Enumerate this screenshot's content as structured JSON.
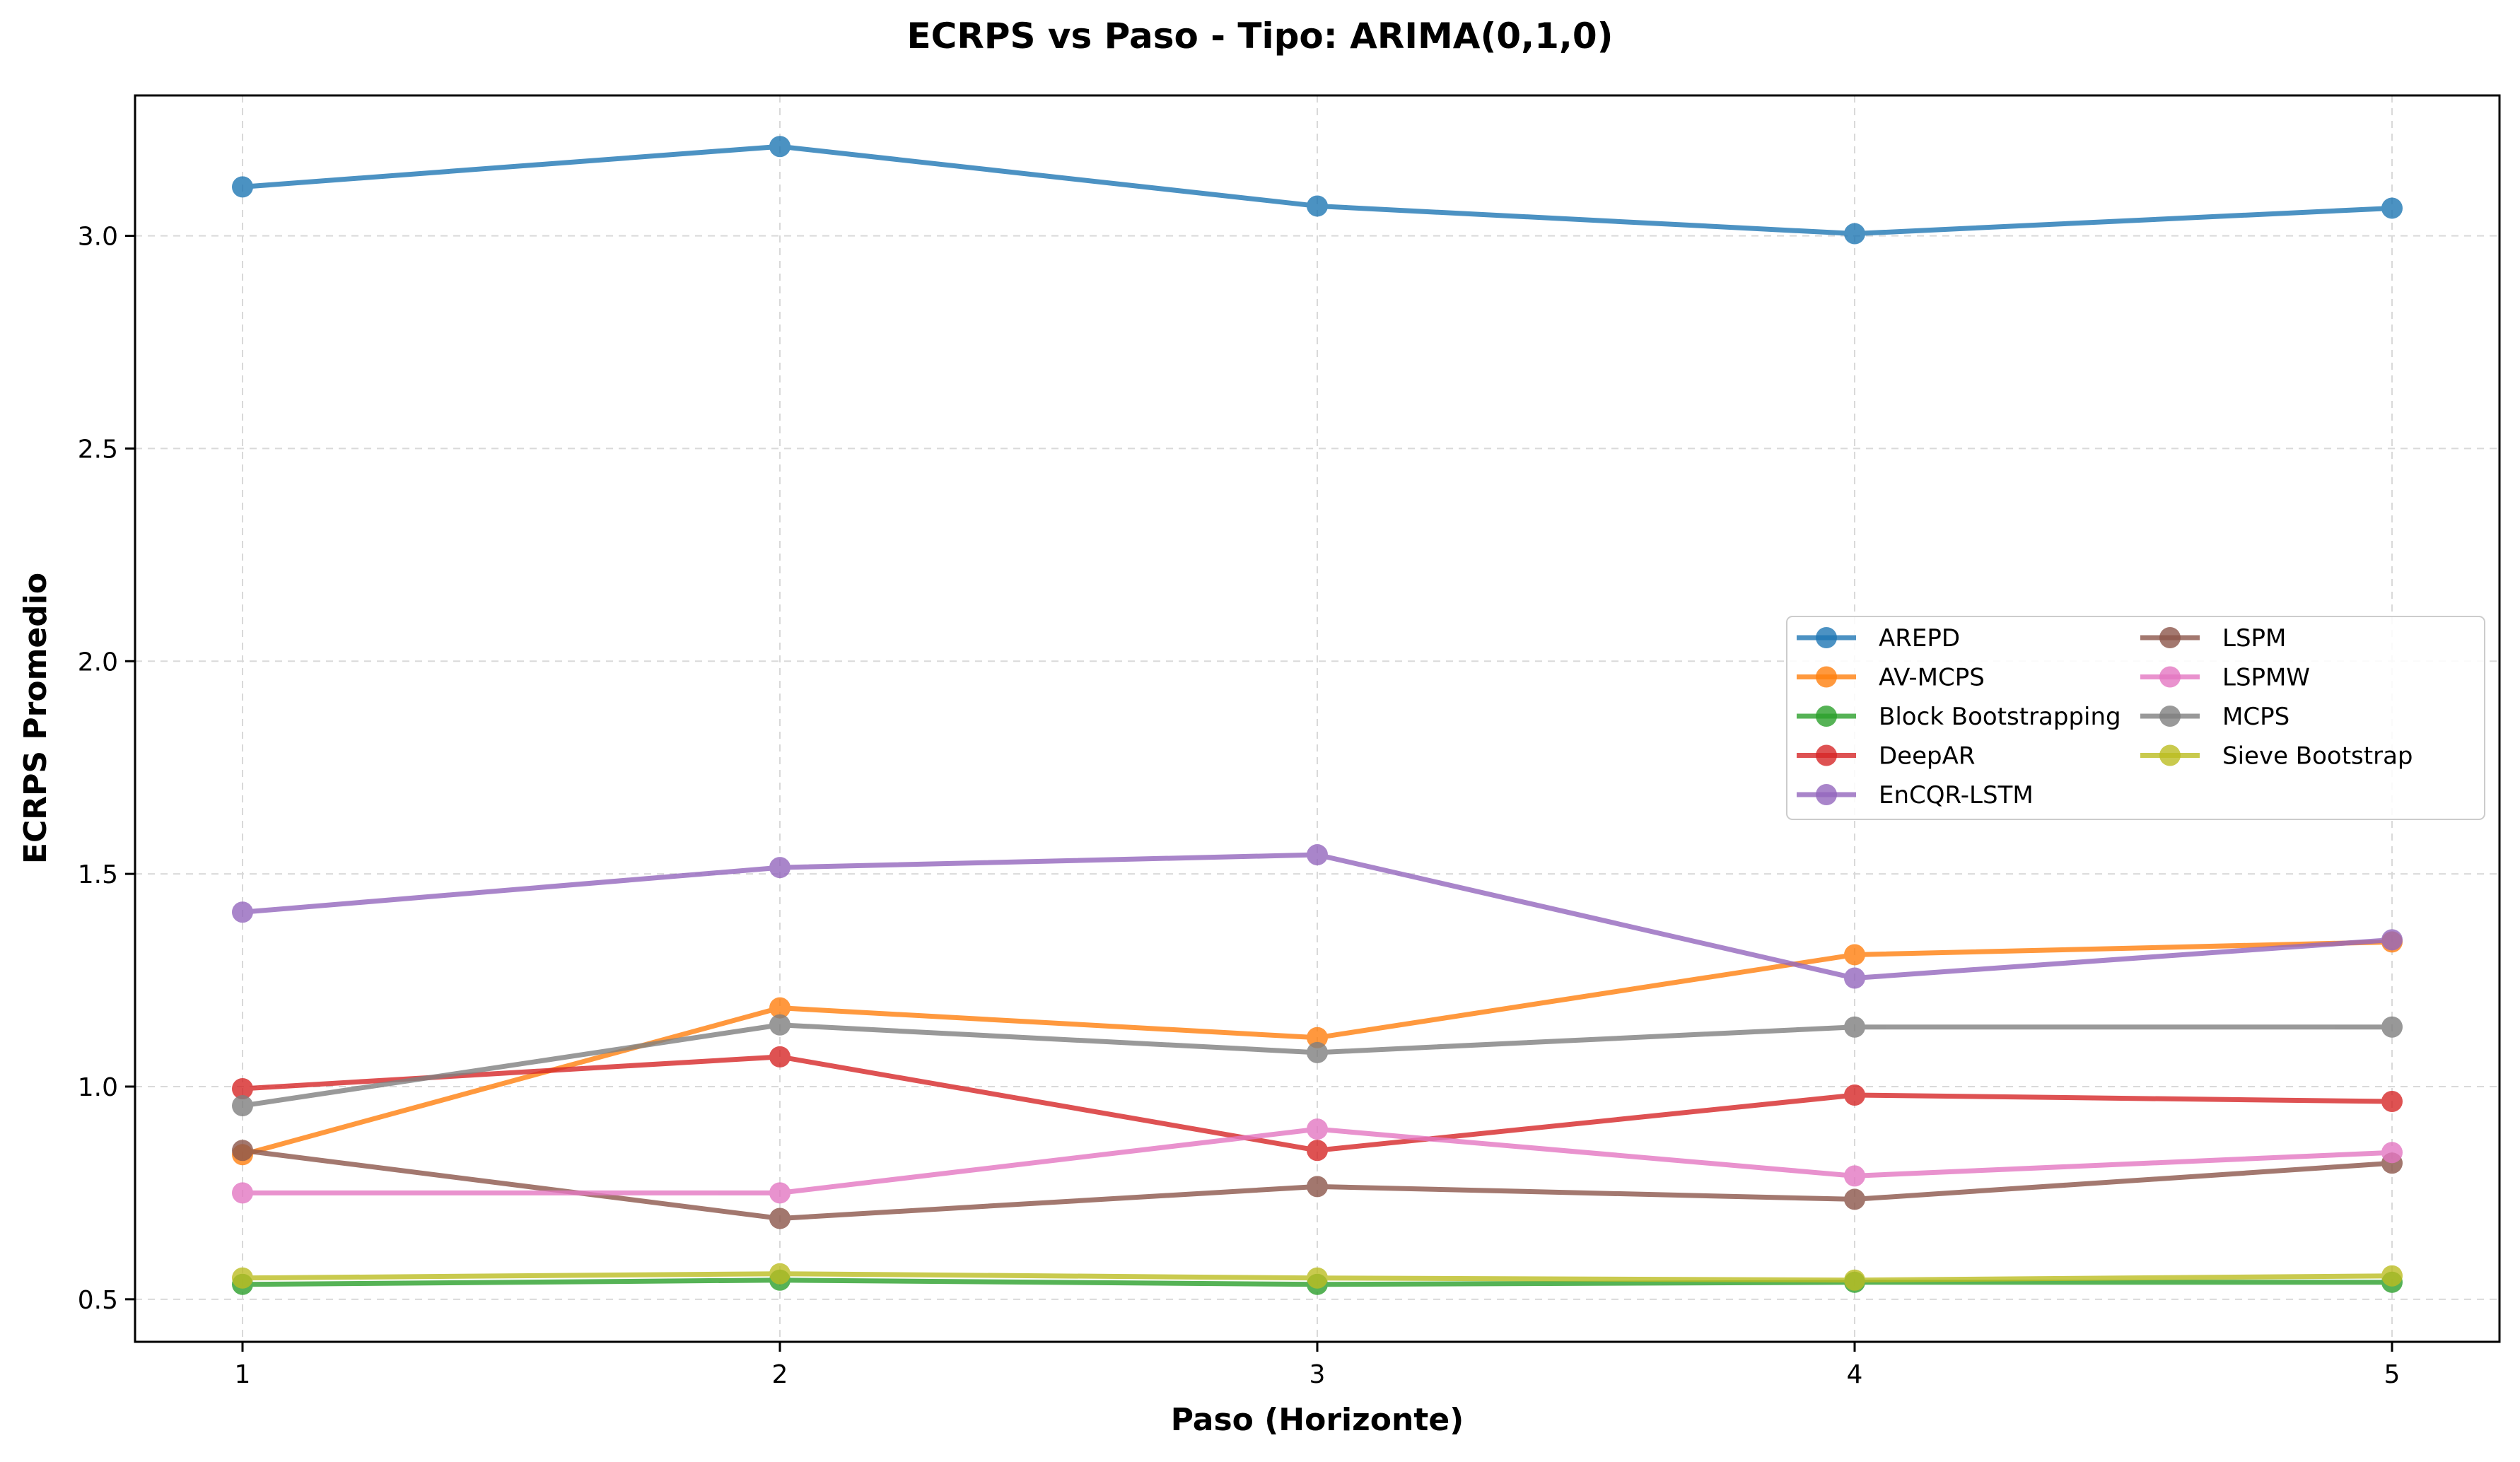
{
  "chart_data": {
    "type": "line",
    "title": "ECRPS vs Paso - Tipo: ARIMA(0,1,0)",
    "xlabel": "Paso (Horizonte)",
    "ylabel": "ECRPS Promedio",
    "x": [
      1,
      2,
      3,
      4,
      5
    ],
    "x_ticks": [
      "1",
      "2",
      "3",
      "4",
      "5"
    ],
    "xlim": [
      0.8,
      5.2
    ],
    "ylim": [
      0.4,
      3.33
    ],
    "y_ticks": [
      "0.5",
      "1.0",
      "1.5",
      "2.0",
      "2.5",
      "3.0"
    ],
    "grid": true,
    "legend_position": "center-right",
    "legend_columns": 2,
    "series": [
      {
        "name": "AREPD",
        "color": "#1f77b4",
        "values": [
          3.115,
          3.21,
          3.07,
          3.005,
          3.065
        ]
      },
      {
        "name": "AV-MCPS",
        "color": "#ff7f0e",
        "values": [
          0.84,
          1.185,
          1.115,
          1.31,
          1.34
        ]
      },
      {
        "name": "Block Bootstrapping",
        "color": "#2ca02c",
        "values": [
          0.535,
          0.545,
          0.535,
          0.54,
          0.54
        ]
      },
      {
        "name": "DeepAR",
        "color": "#d62728",
        "values": [
          0.995,
          1.07,
          0.85,
          0.98,
          0.965
        ]
      },
      {
        "name": "EnCQR-LSTM",
        "color": "#9467bd",
        "values": [
          1.41,
          1.515,
          1.545,
          1.255,
          1.345
        ]
      },
      {
        "name": "LSPM",
        "color": "#8c564b",
        "values": [
          0.85,
          0.69,
          0.765,
          0.735,
          0.82
        ]
      },
      {
        "name": "LSPMW",
        "color": "#e377c2",
        "values": [
          0.75,
          0.75,
          0.9,
          0.79,
          0.845
        ]
      },
      {
        "name": "MCPS",
        "color": "#7f7f7f",
        "values": [
          0.955,
          1.145,
          1.08,
          1.14,
          1.14
        ]
      },
      {
        "name": "Sieve Bootstrap",
        "color": "#bcbd22",
        "values": [
          0.55,
          0.56,
          0.55,
          0.545,
          0.555
        ]
      }
    ]
  }
}
